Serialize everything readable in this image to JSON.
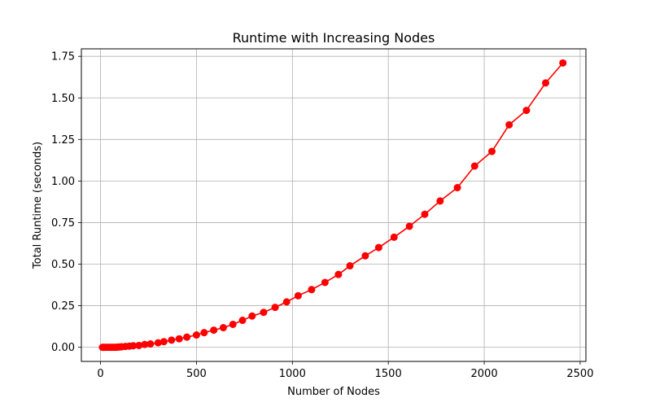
{
  "chart_data": {
    "type": "line",
    "title": "Runtime with Increasing Nodes",
    "xlabel": "Number of Nodes",
    "ylabel": "Total Runtime (seconds)",
    "xlim": [
      -100,
      2530
    ],
    "ylim": [
      -0.085,
      1.795
    ],
    "xticks": [
      0,
      500,
      1000,
      1500,
      2000,
      2500
    ],
    "xtick_labels": [
      "0",
      "500",
      "1000",
      "1500",
      "2000",
      "2500"
    ],
    "yticks": [
      0.0,
      0.25,
      0.5,
      0.75,
      1.0,
      1.25,
      1.5,
      1.75
    ],
    "ytick_labels": [
      "0.00",
      "0.25",
      "0.50",
      "0.75",
      "1.00",
      "1.25",
      "1.50",
      "1.75"
    ],
    "grid": true,
    "legend": "none",
    "series": [
      {
        "color": "#ff0000",
        "marker": "circle",
        "x": [
          10,
          20,
          30,
          40,
          50,
          60,
          70,
          80,
          90,
          100,
          110,
          130,
          150,
          170,
          200,
          230,
          260,
          300,
          330,
          370,
          410,
          450,
          500,
          540,
          590,
          640,
          690,
          740,
          790,
          850,
          910,
          970,
          1030,
          1100,
          1170,
          1240,
          1300,
          1380,
          1450,
          1530,
          1610,
          1690,
          1770,
          1860,
          1950,
          2040,
          2130,
          2220,
          2320,
          2410
        ],
        "values": [
          0.0,
          0.0,
          0.0,
          0.0,
          0.0,
          0.0,
          0.0,
          0.0,
          0.001,
          0.002,
          0.003,
          0.005,
          0.007,
          0.009,
          0.011,
          0.017,
          0.02,
          0.027,
          0.034,
          0.043,
          0.051,
          0.061,
          0.074,
          0.088,
          0.103,
          0.118,
          0.138,
          0.162,
          0.188,
          0.21,
          0.24,
          0.273,
          0.31,
          0.347,
          0.39,
          0.438,
          0.49,
          0.55,
          0.6,
          0.662,
          0.728,
          0.8,
          0.88,
          0.96,
          1.09,
          1.178,
          1.338,
          1.425,
          1.59,
          1.71
        ]
      }
    ]
  }
}
